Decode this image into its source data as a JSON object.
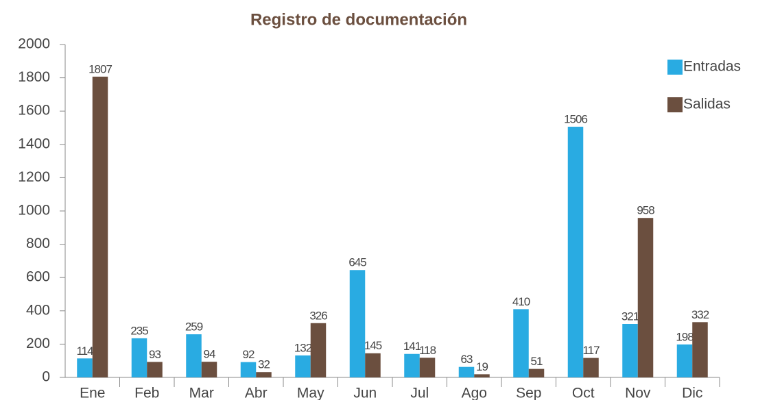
{
  "chart_data": {
    "type": "bar",
    "title": "Registro de documentación",
    "categories": [
      "Ene",
      "Feb",
      "Mar",
      "Abr",
      "May",
      "Jun",
      "Jul",
      "Ago",
      "Sep",
      "Oct",
      "Nov",
      "Dic"
    ],
    "series": [
      {
        "name": "Entradas",
        "color": "#29abe2",
        "values": [
          114,
          235,
          259,
          92,
          132,
          645,
          141,
          63,
          410,
          1506,
          321,
          198
        ]
      },
      {
        "name": "Salidas",
        "color": "#6b4f3f",
        "values": [
          1807,
          93,
          94,
          32,
          326,
          145,
          118,
          19,
          51,
          117,
          958,
          332
        ]
      }
    ],
    "ylim": [
      0,
      2000
    ],
    "yticks": [
      0,
      200,
      400,
      600,
      800,
      1000,
      1200,
      1400,
      1600,
      1800,
      2000
    ],
    "grid": false,
    "legend": "right"
  }
}
